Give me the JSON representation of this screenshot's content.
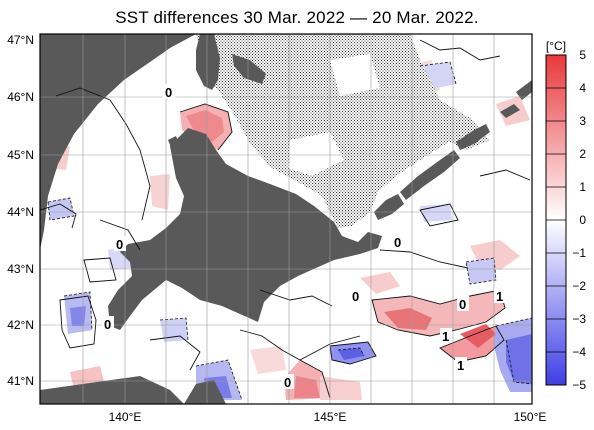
{
  "title": "SST differences 30 Mar. 2022 — 20 Mar. 2022.",
  "lat_labels": [
    "47°N",
    "46°N",
    "45°N",
    "44°N",
    "43°N",
    "42°N",
    "41°N"
  ],
  "lon_labels": [
    "140°E",
    "145°E",
    "150°E"
  ],
  "colorbar": {
    "unit": "[°C]",
    "ticks": [
      "5",
      "4",
      "3",
      "2",
      "1",
      "0",
      "−1",
      "−2",
      "−3",
      "−4",
      "−5"
    ],
    "range": [
      -5,
      5
    ],
    "warm_color": "#e8383c",
    "cool_color": "#3e3ee6",
    "neutral_color": "#ffffff"
  },
  "map": {
    "land_color": "#595959",
    "lat_range": [
      40.6,
      47.0
    ],
    "lon_range": [
      138.0,
      150.0
    ],
    "grid": true,
    "contour_labels": [
      "0",
      "0",
      "0",
      "0",
      "0",
      "1",
      "0",
      "1",
      "1",
      "0"
    ]
  }
}
